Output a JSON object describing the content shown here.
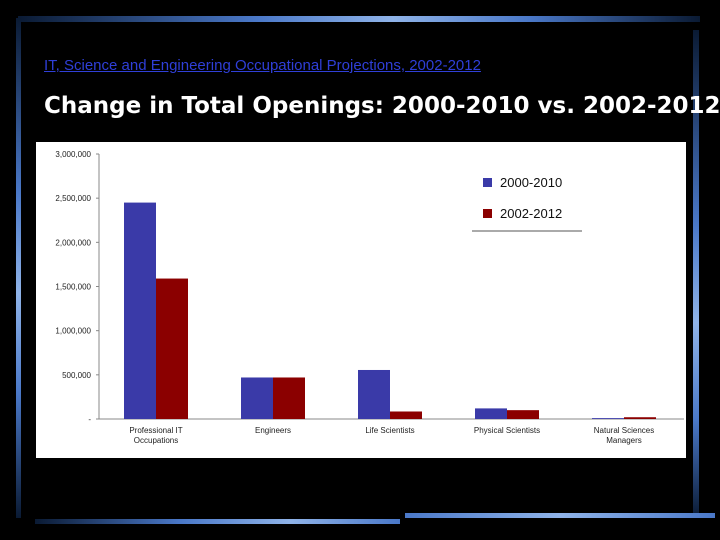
{
  "slide": {
    "subtitle": "IT, Science and Engineering Occupational Projections, 2002-2012",
    "title": "Change in Total Openings: 2000-2010 vs. 2002-2012"
  },
  "colors": {
    "series_2000_2010": "#3a3aa8",
    "series_2002_2012": "#8b0000"
  },
  "chart_data": {
    "type": "bar",
    "categories": [
      [
        "Professional IT",
        "Occupations"
      ],
      [
        "Engineers"
      ],
      [
        "Life Scientists"
      ],
      [
        "Physical Scientists"
      ],
      [
        "Natural Sciences",
        "Managers"
      ]
    ],
    "series": [
      {
        "name": "2000-2010",
        "values": [
          2450000,
          470000,
          555000,
          120000,
          10000
        ]
      },
      {
        "name": "2002-2012",
        "values": [
          1590000,
          470000,
          85000,
          100000,
          20000
        ]
      }
    ],
    "ylim": [
      0,
      3000000
    ],
    "y_ticks": [
      {
        "value": 0,
        "label": "-"
      },
      {
        "value": 500000,
        "label": "500,000"
      },
      {
        "value": 1000000,
        "label": "1,000,000"
      },
      {
        "value": 1500000,
        "label": "1,500,000"
      },
      {
        "value": 2000000,
        "label": "2,000,000"
      },
      {
        "value": 2500000,
        "label": "2,500,000"
      },
      {
        "value": 3000000,
        "label": "3,000,000"
      }
    ],
    "legend_placement": "top-right"
  }
}
